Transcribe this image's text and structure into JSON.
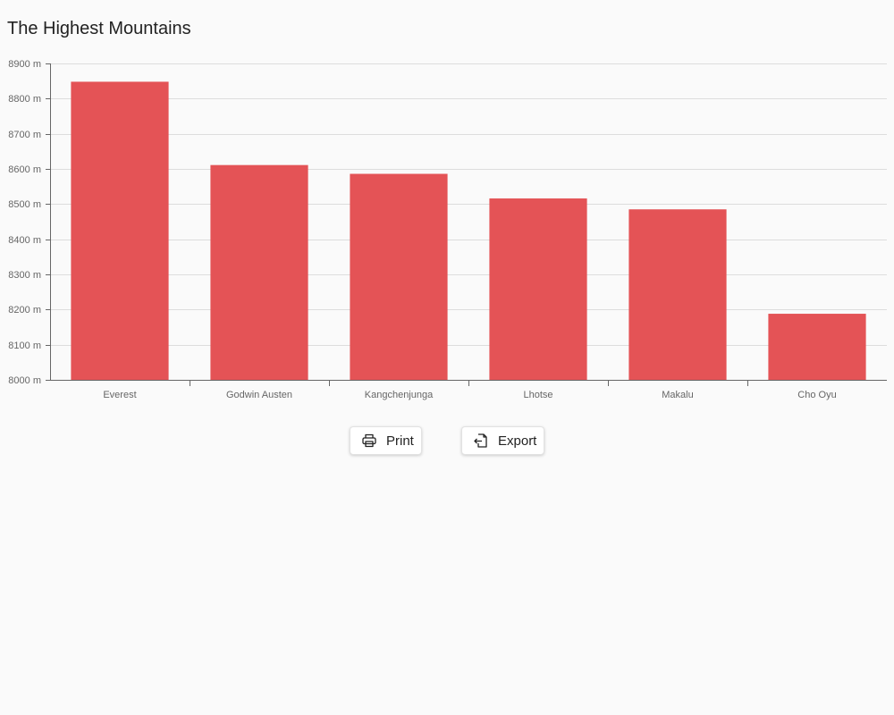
{
  "chart_data": {
    "type": "bar",
    "title": "The Highest Mountains",
    "categories": [
      "Everest",
      "Godwin Austen",
      "Kangchenjunga",
      "Lhotse",
      "Makalu",
      "Cho Oyu"
    ],
    "values": [
      8848,
      8611,
      8586,
      8516,
      8485,
      8188
    ],
    "ylim": [
      8000,
      8900
    ],
    "yticks": [
      8000,
      8100,
      8200,
      8300,
      8400,
      8500,
      8600,
      8700,
      8800,
      8900
    ],
    "ytick_suffix": " m",
    "grid": true,
    "bar_color": "#e45356"
  },
  "toolbar": {
    "print_label": "Print",
    "export_label": "Export"
  },
  "icons": {
    "print": "printer-icon",
    "export": "export-icon"
  }
}
